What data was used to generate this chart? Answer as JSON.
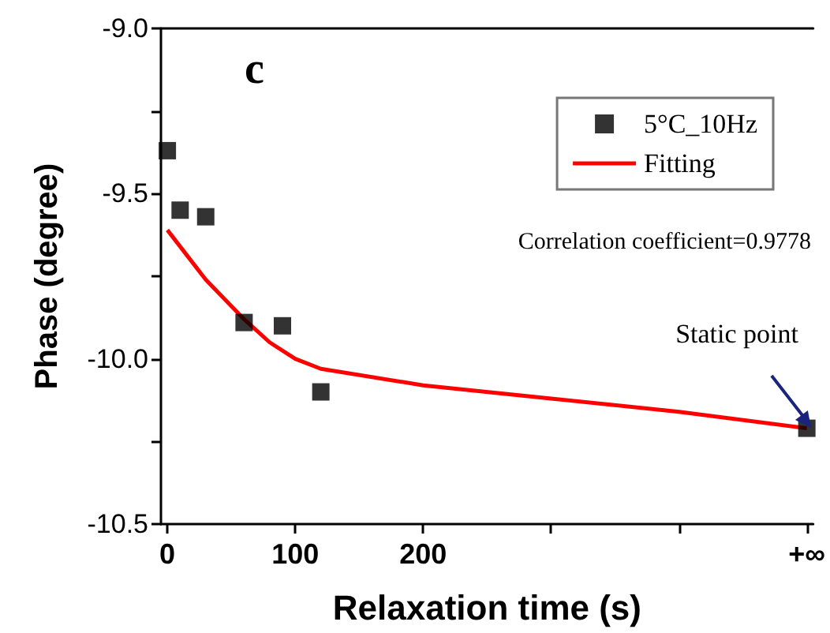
{
  "chart_data": {
    "type": "scatter",
    "xlabel": "Relaxation time (s)",
    "ylabel": "Phase (degree)",
    "xlim": [
      -5,
      505
    ],
    "xticks": [
      0,
      100,
      200,
      {
        "value": 300,
        "label": null
      },
      {
        "value": 400,
        "label": null
      },
      {
        "value": 500,
        "label": "+∞"
      }
    ],
    "ylim": [
      -10.5,
      -9.0
    ],
    "yticks": [
      {
        "value": -10.5,
        "label": "-10.5"
      },
      {
        "value": -10,
        "label": "-10.0"
      },
      {
        "value": -9.5,
        "label": "-9.5"
      },
      {
        "value": -9,
        "label": "-9.0"
      }
    ],
    "grid": false,
    "legend": "top right",
    "marker": "square",
    "series": [
      {
        "name": "5°C_10Hz",
        "color": "#000000",
        "x": [
          0,
          10,
          30,
          60,
          90,
          120,
          500
        ],
        "values": [
          -9.37,
          -9.55,
          -9.57,
          -9.89,
          -9.9,
          -10.1,
          -10.21
        ]
      },
      {
        "name": "Fitting",
        "type": "line",
        "color": "#ff0000",
        "marker": "none",
        "x": [
          0,
          30,
          60,
          80,
          100,
          120,
          200,
          300,
          400,
          500
        ],
        "values": [
          -9.61,
          -9.76,
          -9.88,
          -9.95,
          -10.0,
          -10.03,
          -10.08,
          -10.12,
          -10.16,
          -10.21
        ]
      }
    ],
    "annotations": [
      "c",
      "Correlation coefficient=0.9778",
      "Static point"
    ]
  }
}
